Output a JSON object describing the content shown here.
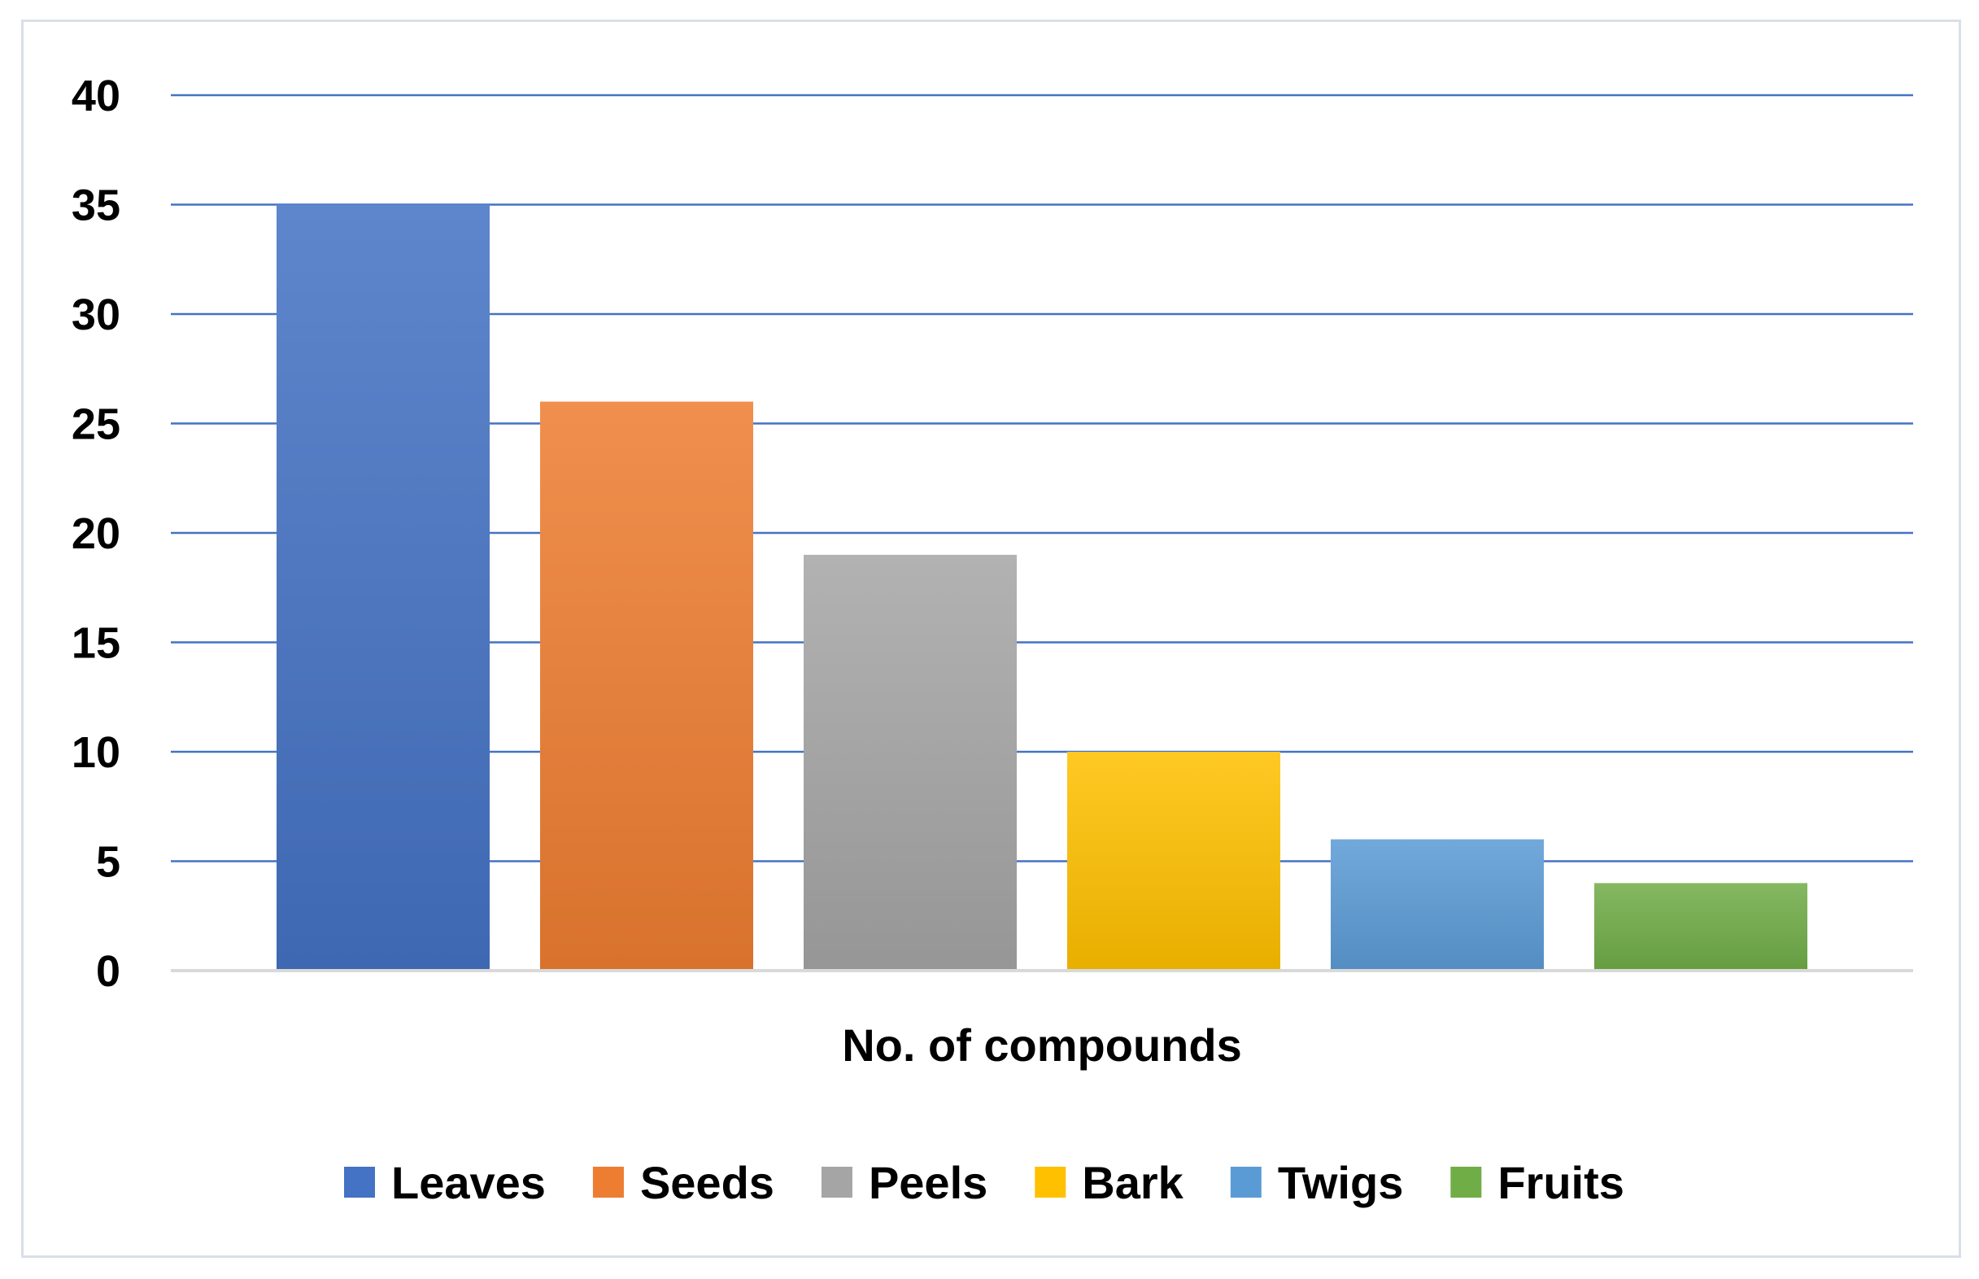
{
  "chart_data": {
    "type": "bar",
    "categories": [
      ""
    ],
    "series": [
      {
        "name": "Leaves",
        "values": [
          35
        ],
        "color": "#4472c4"
      },
      {
        "name": "Seeds",
        "values": [
          26
        ],
        "color": "#ed7d31"
      },
      {
        "name": "Peels",
        "values": [
          19
        ],
        "color": "#a5a5a5"
      },
      {
        "name": "Bark",
        "values": [
          10
        ],
        "color": "#ffc000"
      },
      {
        "name": "Twigs",
        "values": [
          6
        ],
        "color": "#5b9bd5"
      },
      {
        "name": "Fruits",
        "values": [
          4
        ],
        "color": "#70ad47"
      }
    ],
    "title": "",
    "xlabel": "No. of compounds",
    "ylabel": "",
    "ylim": [
      0,
      40
    ],
    "yticks": [
      0,
      5,
      10,
      15,
      20,
      25,
      30,
      35,
      40
    ],
    "grid": true,
    "gridline_color": "#4472c4",
    "legend_position": "bottom"
  }
}
